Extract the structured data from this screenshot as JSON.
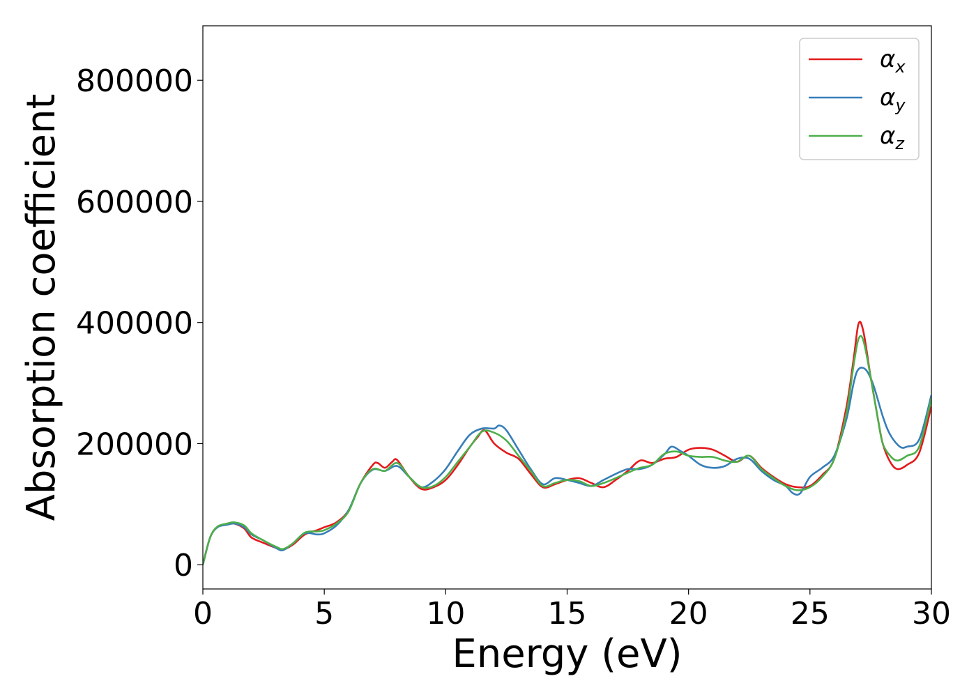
{
  "chart_data": {
    "type": "line",
    "title": "",
    "xlabel": "Energy (eV)",
    "ylabel": "Absorption coefficient",
    "xlim": [
      0,
      30
    ],
    "ylim": [
      -40000,
      890000
    ],
    "xticks": [
      0,
      5,
      10,
      15,
      20,
      25,
      30
    ],
    "xtick_labels": [
      "0",
      "5",
      "10",
      "15",
      "20",
      "25",
      "30"
    ],
    "yticks": [
      0,
      200000,
      400000,
      600000,
      800000
    ],
    "ytick_labels": [
      "0",
      "200000",
      "400000",
      "600000",
      "800000"
    ],
    "grid": false,
    "legend_position": "top-right",
    "series": [
      {
        "name": "αx",
        "symbol": "α",
        "subscript": "x",
        "color": "#e41a1c",
        "x": [
          0,
          0.3,
          0.6,
          1.0,
          1.3,
          1.7,
          2.0,
          2.5,
          3.0,
          3.3,
          3.7,
          4.2,
          4.7,
          5.0,
          5.5,
          6.0,
          6.5,
          7.0,
          7.2,
          7.5,
          7.8,
          8.0,
          8.5,
          9.0,
          9.5,
          10.0,
          10.5,
          11.0,
          11.3,
          11.6,
          12.0,
          12.5,
          13.0,
          13.5,
          14.0,
          14.5,
          15.0,
          15.5,
          16.0,
          16.5,
          17.0,
          17.5,
          18.0,
          18.5,
          19.0,
          19.5,
          20.0,
          20.5,
          21.0,
          21.5,
          22.0,
          22.5,
          23.0,
          23.5,
          24.0,
          24.5,
          25.0,
          25.5,
          26.0,
          26.5,
          26.8,
          27.0,
          27.2,
          27.5,
          27.8,
          28.0,
          28.3,
          28.6,
          29.0,
          29.5,
          30.0
        ],
        "y": [
          0,
          45000,
          62000,
          68000,
          68000,
          60000,
          45000,
          36000,
          28000,
          25000,
          33000,
          50000,
          57000,
          62000,
          70000,
          90000,
          135000,
          165000,
          168000,
          160000,
          170000,
          173000,
          145000,
          125000,
          128000,
          140000,
          165000,
          195000,
          210000,
          222000,
          200000,
          185000,
          175000,
          150000,
          128000,
          133000,
          140000,
          143000,
          135000,
          128000,
          140000,
          155000,
          172000,
          168000,
          175000,
          178000,
          190000,
          193000,
          190000,
          180000,
          170000,
          180000,
          160000,
          145000,
          133000,
          128000,
          130000,
          148000,
          175000,
          260000,
          340000,
          398000,
          385000,
          310000,
          240000,
          200000,
          170000,
          158000,
          165000,
          185000,
          262000
        ]
      },
      {
        "name": "αy",
        "symbol": "α",
        "subscript": "y",
        "color": "#377eb8",
        "x": [
          0,
          0.3,
          0.6,
          1.0,
          1.3,
          1.7,
          2.0,
          2.5,
          3.0,
          3.3,
          3.7,
          4.2,
          4.7,
          5.0,
          5.5,
          6.0,
          6.5,
          7.0,
          7.5,
          8.0,
          8.5,
          9.0,
          9.5,
          10.0,
          10.5,
          11.0,
          11.5,
          12.0,
          12.2,
          12.5,
          13.0,
          13.5,
          14.0,
          14.5,
          15.0,
          15.5,
          16.0,
          16.5,
          17.0,
          17.5,
          18.0,
          18.5,
          19.0,
          19.3,
          19.7,
          20.0,
          20.5,
          21.0,
          21.5,
          22.0,
          22.5,
          23.0,
          23.5,
          24.0,
          24.3,
          24.6,
          25.0,
          25.5,
          26.0,
          26.5,
          26.8,
          27.0,
          27.3,
          27.6,
          28.0,
          28.3,
          28.7,
          29.0,
          29.5,
          30.0
        ],
        "y": [
          0,
          45000,
          62000,
          66000,
          68000,
          62000,
          50000,
          40000,
          28000,
          24000,
          35000,
          52000,
          50000,
          52000,
          65000,
          90000,
          135000,
          157000,
          155000,
          163000,
          145000,
          128000,
          138000,
          158000,
          188000,
          215000,
          225000,
          225000,
          230000,
          222000,
          190000,
          158000,
          133000,
          143000,
          140000,
          135000,
          130000,
          140000,
          150000,
          158000,
          158000,
          165000,
          182000,
          195000,
          187000,
          180000,
          165000,
          160000,
          163000,
          175000,
          175000,
          155000,
          140000,
          130000,
          118000,
          118000,
          145000,
          160000,
          180000,
          240000,
          300000,
          323000,
          322000,
          298000,
          245000,
          215000,
          195000,
          195000,
          207000,
          280000
        ]
      },
      {
        "name": "αz",
        "symbol": "α",
        "subscript": "z",
        "color": "#4daf4a",
        "x": [
          0,
          0.3,
          0.6,
          1.0,
          1.3,
          1.7,
          2.0,
          2.5,
          3.0,
          3.3,
          3.7,
          4.2,
          4.7,
          5.0,
          5.5,
          6.0,
          6.5,
          7.0,
          7.5,
          8.0,
          8.5,
          9.0,
          9.5,
          10.0,
          10.5,
          11.0,
          11.5,
          12.0,
          12.5,
          13.0,
          13.5,
          14.0,
          14.5,
          15.0,
          15.5,
          16.0,
          16.5,
          17.0,
          17.5,
          18.0,
          18.5,
          19.0,
          19.5,
          20.0,
          20.5,
          21.0,
          21.5,
          22.0,
          22.5,
          23.0,
          23.5,
          24.0,
          24.5,
          25.0,
          25.5,
          26.0,
          26.5,
          26.8,
          27.0,
          27.2,
          27.5,
          27.8,
          28.0,
          28.3,
          28.6,
          29.0,
          29.5,
          30.0
        ],
        "y": [
          0,
          45000,
          63000,
          68000,
          70000,
          65000,
          52000,
          40000,
          30000,
          26000,
          35000,
          53000,
          55000,
          57000,
          68000,
          88000,
          135000,
          158000,
          155000,
          168000,
          145000,
          128000,
          130000,
          145000,
          170000,
          195000,
          220000,
          218000,
          205000,
          180000,
          155000,
          130000,
          135000,
          140000,
          138000,
          130000,
          135000,
          143000,
          152000,
          160000,
          165000,
          183000,
          187000,
          180000,
          178000,
          178000,
          172000,
          170000,
          180000,
          158000,
          143000,
          130000,
          123000,
          128000,
          145000,
          175000,
          250000,
          330000,
          373000,
          370000,
          310000,
          240000,
          200000,
          180000,
          172000,
          180000,
          195000,
          275000
        ]
      }
    ]
  }
}
